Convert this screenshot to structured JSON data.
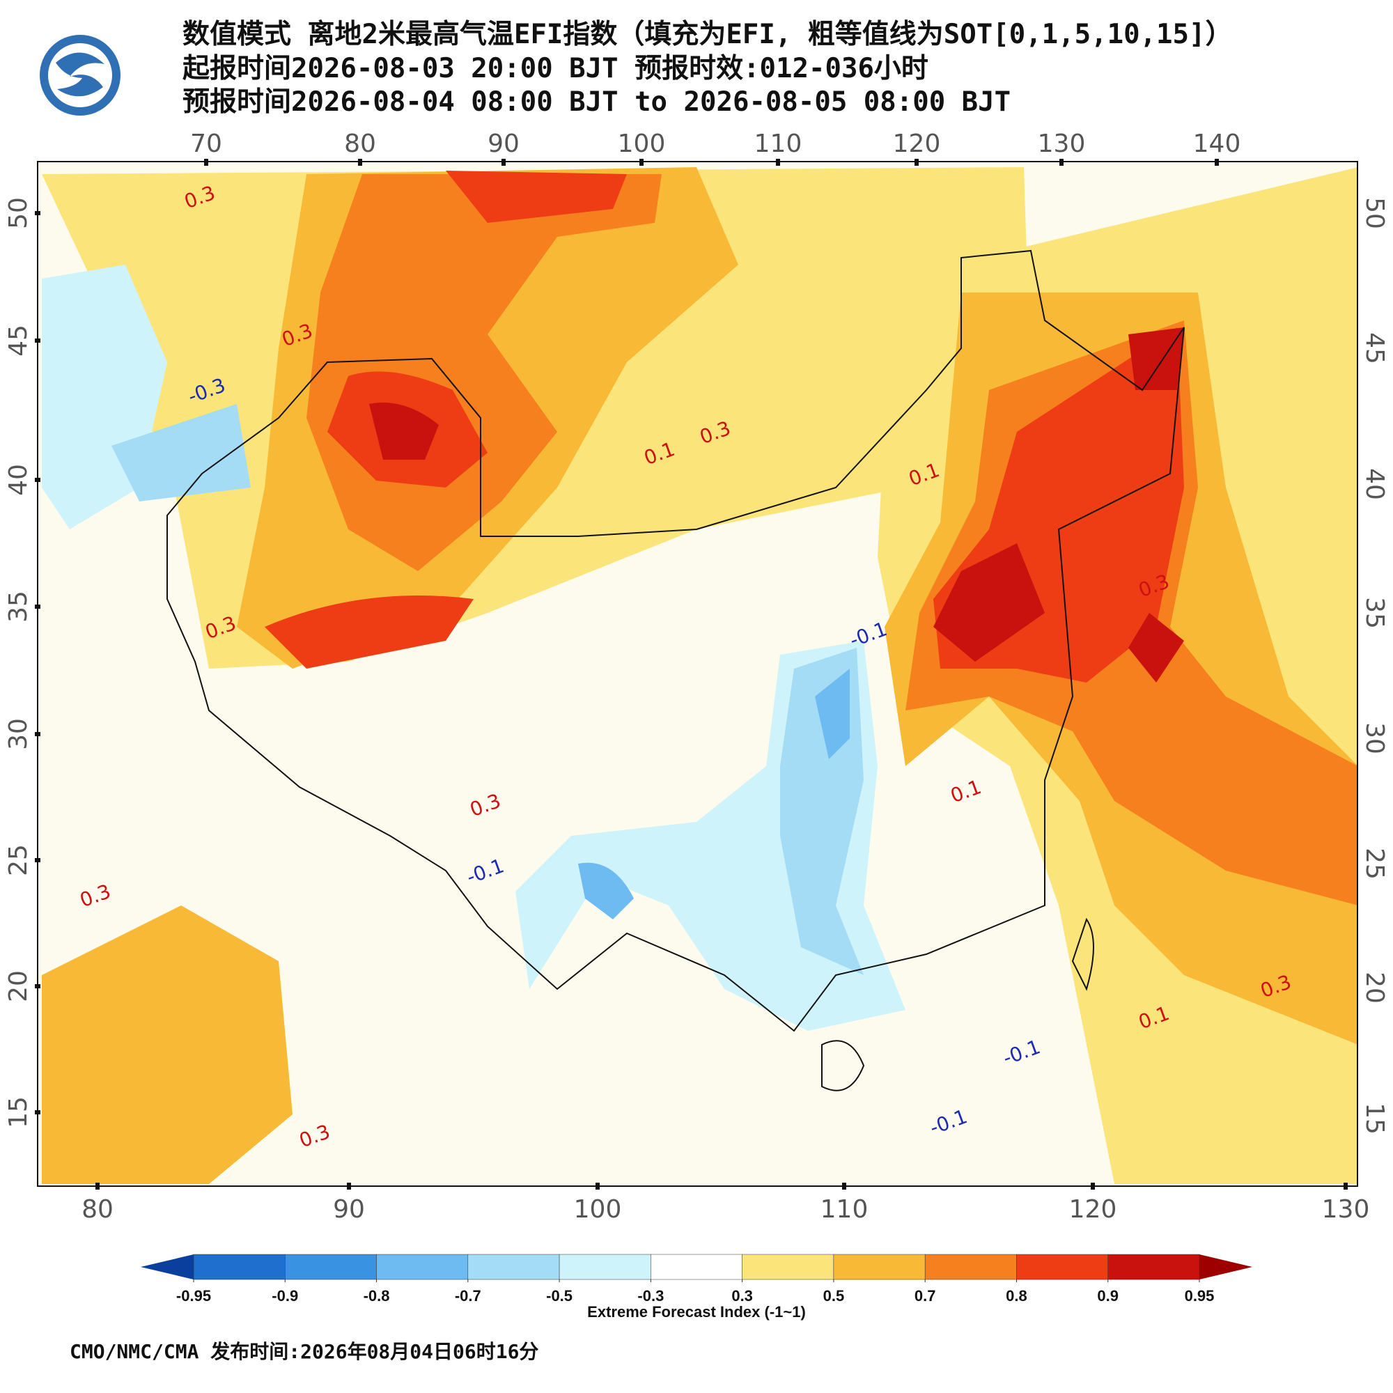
{
  "header": {
    "title": "数值模式 离地2米最高气温EFI指数（填充为EFI, 粗等值线为SOT[0,1,5,10,15]）",
    "issue_line": "起报时间2026-08-03 20:00 BJT 预报时效:012-036小时",
    "valid_line": "预报时间2026-08-04 08:00 BJT to 2026-08-05 08:00 BJT"
  },
  "map": {
    "top_lon_ticks": [
      70,
      80,
      90,
      100,
      110,
      120,
      130,
      140
    ],
    "bottom_lon_ticks": [
      80,
      90,
      100,
      110,
      120,
      130
    ],
    "lat_ticks": [
      50,
      45,
      40,
      35,
      30,
      25,
      20,
      15
    ],
    "contour_labels": [
      0.3,
      0.3,
      -0.3,
      0.1,
      0.3,
      0.1,
      0.3,
      0.3,
      -0.1,
      0.3,
      -0.1,
      0.3,
      0.1,
      -0.1,
      -0.1,
      0.3,
      0.3,
      0.1
    ]
  },
  "colorbar": {
    "ticks": [
      -0.95,
      -0.9,
      -0.8,
      -0.7,
      -0.5,
      -0.3,
      0.3,
      0.5,
      0.7,
      0.8,
      0.9,
      0.95
    ],
    "colors": [
      "#0b3f9e",
      "#1f6fcf",
      "#3a92e2",
      "#6dbbf0",
      "#a4dcf6",
      "#cff3fa",
      "#ffffff",
      "#fbe57b",
      "#f8ba36",
      "#f5801d",
      "#ee3c14",
      "#c9120d",
      "#9e0000"
    ],
    "label": "Extreme Forecast Index (-1~1)"
  },
  "footer": "CMO/NMC/CMA 发布时间:2026年08月04日06时16分"
}
